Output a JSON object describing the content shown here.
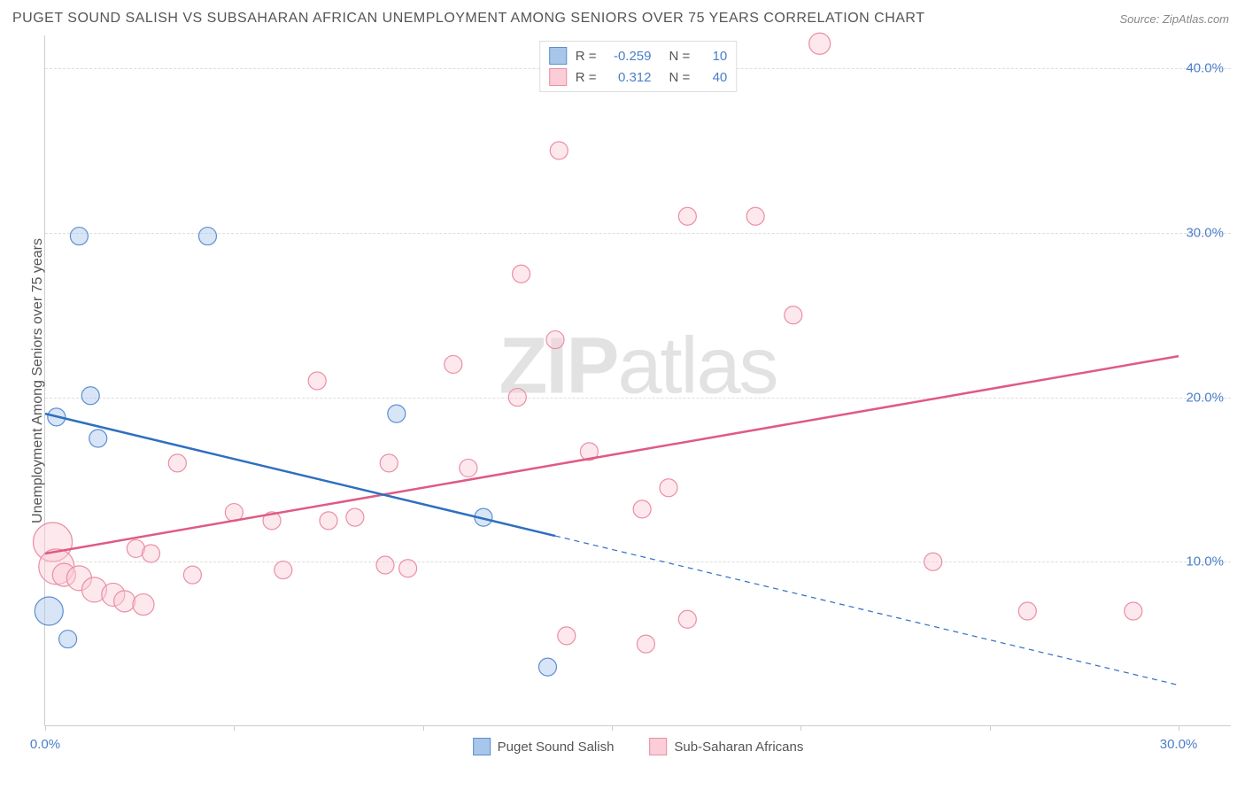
{
  "title": "PUGET SOUND SALISH VS SUBSAHARAN AFRICAN UNEMPLOYMENT AMONG SENIORS OVER 75 YEARS CORRELATION CHART",
  "source": "Source: ZipAtlas.com",
  "y_axis_label": "Unemployment Among Seniors over 75 years",
  "watermark_left": "ZIP",
  "watermark_right": "atlas",
  "xlim": [
    0,
    30
  ],
  "ylim": [
    0,
    42
  ],
  "x_ticks": [
    0,
    5,
    10,
    15,
    20,
    25,
    30
  ],
  "x_tick_labels": {
    "0": "0.0%",
    "30": "30.0%"
  },
  "y_gridlines": [
    10,
    20,
    30,
    40
  ],
  "y_tick_labels": {
    "10": "10.0%",
    "20": "20.0%",
    "30": "30.0%",
    "40": "40.0%"
  },
  "colors": {
    "blue_fill": "#a8c6ea",
    "blue_stroke": "#5b8fd0",
    "blue_line": "#2e6fc0",
    "pink_fill": "#facdd7",
    "pink_stroke": "#e98fa5",
    "pink_line": "#e05a83",
    "grid": "#dddddd",
    "axis": "#cccccc",
    "tick_text": "#4a7ec9",
    "label_text": "#555555"
  },
  "series_a": {
    "name": "Puget Sound Salish",
    "R": "-0.259",
    "N": "10",
    "points": [
      {
        "x": 0.9,
        "y": 29.8,
        "r": 10
      },
      {
        "x": 4.3,
        "y": 29.8,
        "r": 10
      },
      {
        "x": 1.2,
        "y": 20.1,
        "r": 10
      },
      {
        "x": 0.3,
        "y": 18.8,
        "r": 10
      },
      {
        "x": 1.4,
        "y": 17.5,
        "r": 10
      },
      {
        "x": 0.1,
        "y": 7.0,
        "r": 16
      },
      {
        "x": 0.6,
        "y": 5.3,
        "r": 10
      },
      {
        "x": 9.3,
        "y": 19.0,
        "r": 10
      },
      {
        "x": 11.6,
        "y": 12.7,
        "r": 10
      },
      {
        "x": 13.3,
        "y": 3.6,
        "r": 10
      }
    ],
    "trend": {
      "x1": 0,
      "y1": 19.0,
      "x2": 30,
      "y2": 2.5,
      "solid_until_x": 13.5
    }
  },
  "series_b": {
    "name": "Sub-Saharan Africans",
    "R": "0.312",
    "N": "40",
    "points": [
      {
        "x": 0.2,
        "y": 11.2,
        "r": 22
      },
      {
        "x": 0.3,
        "y": 9.7,
        "r": 20
      },
      {
        "x": 0.5,
        "y": 9.2,
        "r": 13
      },
      {
        "x": 0.9,
        "y": 9.0,
        "r": 14
      },
      {
        "x": 1.3,
        "y": 8.3,
        "r": 14
      },
      {
        "x": 1.8,
        "y": 8.0,
        "r": 13
      },
      {
        "x": 2.1,
        "y": 7.6,
        "r": 12
      },
      {
        "x": 2.4,
        "y": 10.8,
        "r": 10
      },
      {
        "x": 2.6,
        "y": 7.4,
        "r": 12
      },
      {
        "x": 2.8,
        "y": 10.5,
        "r": 10
      },
      {
        "x": 3.5,
        "y": 16.0,
        "r": 10
      },
      {
        "x": 3.9,
        "y": 9.2,
        "r": 10
      },
      {
        "x": 5.0,
        "y": 13.0,
        "r": 10
      },
      {
        "x": 6.0,
        "y": 12.5,
        "r": 10
      },
      {
        "x": 6.3,
        "y": 9.5,
        "r": 10
      },
      {
        "x": 7.2,
        "y": 21.0,
        "r": 10
      },
      {
        "x": 7.5,
        "y": 12.5,
        "r": 10
      },
      {
        "x": 8.2,
        "y": 12.7,
        "r": 10
      },
      {
        "x": 9.1,
        "y": 16.0,
        "r": 10
      },
      {
        "x": 9.0,
        "y": 9.8,
        "r": 10
      },
      {
        "x": 9.6,
        "y": 9.6,
        "r": 10
      },
      {
        "x": 10.8,
        "y": 22.0,
        "r": 10
      },
      {
        "x": 11.2,
        "y": 15.7,
        "r": 10
      },
      {
        "x": 12.5,
        "y": 20.0,
        "r": 10
      },
      {
        "x": 12.6,
        "y": 27.5,
        "r": 10
      },
      {
        "x": 13.6,
        "y": 35.0,
        "r": 10
      },
      {
        "x": 13.5,
        "y": 23.5,
        "r": 10
      },
      {
        "x": 13.8,
        "y": 5.5,
        "r": 10
      },
      {
        "x": 14.4,
        "y": 16.7,
        "r": 10
      },
      {
        "x": 15.8,
        "y": 13.2,
        "r": 10
      },
      {
        "x": 15.9,
        "y": 5.0,
        "r": 10
      },
      {
        "x": 16.5,
        "y": 14.5,
        "r": 10
      },
      {
        "x": 17.0,
        "y": 31.0,
        "r": 10
      },
      {
        "x": 17.0,
        "y": 6.5,
        "r": 10
      },
      {
        "x": 18.8,
        "y": 31.0,
        "r": 10
      },
      {
        "x": 19.8,
        "y": 25.0,
        "r": 10
      },
      {
        "x": 20.5,
        "y": 41.5,
        "r": 12
      },
      {
        "x": 23.5,
        "y": 10.0,
        "r": 10
      },
      {
        "x": 26.0,
        "y": 7.0,
        "r": 10
      },
      {
        "x": 28.8,
        "y": 7.0,
        "r": 10
      }
    ],
    "trend": {
      "x1": 0,
      "y1": 10.5,
      "x2": 30,
      "y2": 22.5
    }
  },
  "legend_top_labels": {
    "R": "R =",
    "N": "N ="
  },
  "legend_bottom": [
    "Puget Sound Salish",
    "Sub-Saharan Africans"
  ]
}
